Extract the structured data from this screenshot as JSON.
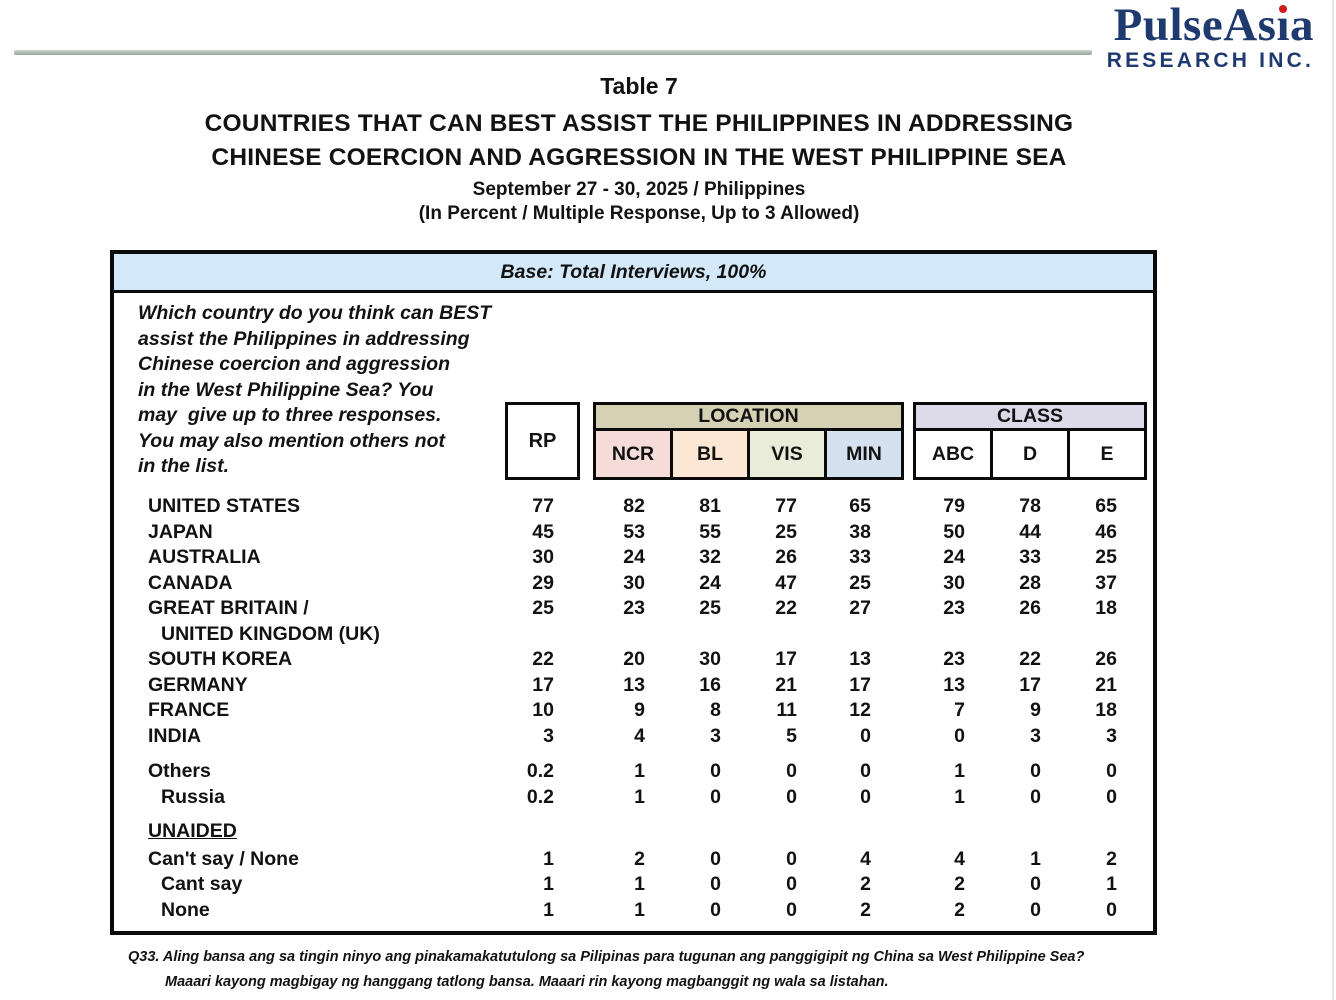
{
  "logo": {
    "brand_pre": "PulseAs",
    "brand_i": "ı",
    "brand_post": "a",
    "research": "RESEARCH INC."
  },
  "titles": {
    "table_no": "Table 7",
    "line1": "COUNTRIES THAT CAN BEST ASSIST THE PHILIPPINES IN ADDRESSING",
    "line2": "CHINESE COERCION AND AGGRESSION IN THE WEST PHILIPPINE SEA",
    "date_line": "September 27 - 30, 2025 / Philippines",
    "note_line": "(In Percent / Multiple Response, Up to 3 Allowed)"
  },
  "table": {
    "base_label": "Base: Total Interviews, 100%",
    "question_lines": [
      "Which country do you think can BEST",
      "assist the Philippines in addressing",
      "Chinese coercion and aggression",
      "in the West Philippine Sea? You",
      "may  give up to three responses.",
      "You may also mention others not",
      "in the list."
    ],
    "rp_header": "RP",
    "location_header": "LOCATION",
    "location_cols": [
      "NCR",
      "BL",
      "VIS",
      "MIN"
    ],
    "class_header": "CLASS",
    "class_cols": [
      "ABC",
      "D",
      "E"
    ],
    "rows": [
      {
        "label": "UNITED STATES",
        "indent": 0,
        "values": [
          "77",
          "82",
          "81",
          "77",
          "65",
          "79",
          "78",
          "65"
        ]
      },
      {
        "label": "JAPAN",
        "indent": 0,
        "values": [
          "45",
          "53",
          "55",
          "25",
          "38",
          "50",
          "44",
          "46"
        ]
      },
      {
        "label": "AUSTRALIA",
        "indent": 0,
        "values": [
          "30",
          "24",
          "32",
          "26",
          "33",
          "24",
          "33",
          "25"
        ]
      },
      {
        "label": "CANADA",
        "indent": 0,
        "values": [
          "29",
          "30",
          "24",
          "47",
          "25",
          "30",
          "28",
          "37"
        ]
      },
      {
        "label": "GREAT BRITAIN /",
        "indent": 0,
        "values": [
          "25",
          "23",
          "25",
          "22",
          "27",
          "23",
          "26",
          "18"
        ]
      },
      {
        "label": "UNITED KINGDOM (UK)",
        "indent": 1,
        "values": null
      },
      {
        "label": "SOUTH KOREA",
        "indent": 0,
        "values": [
          "22",
          "20",
          "30",
          "17",
          "13",
          "23",
          "22",
          "26"
        ]
      },
      {
        "label": "GERMANY",
        "indent": 0,
        "values": [
          "17",
          "13",
          "16",
          "21",
          "17",
          "13",
          "17",
          "21"
        ]
      },
      {
        "label": "FRANCE",
        "indent": 0,
        "values": [
          "10",
          "9",
          "8",
          "11",
          "12",
          "7",
          "9",
          "18"
        ]
      },
      {
        "label": "INDIA",
        "indent": 0,
        "values": [
          "3",
          "4",
          "3",
          "5",
          "0",
          "0",
          "3",
          "3"
        ]
      },
      {
        "label": "Others",
        "indent": 0,
        "gap_before": 10,
        "values": [
          "0.2",
          "1",
          "0",
          "0",
          "0",
          "1",
          "0",
          "0"
        ]
      },
      {
        "label": "Russia",
        "indent": 1,
        "values": [
          "0.2",
          "1",
          "0",
          "0",
          "0",
          "1",
          "0",
          "0"
        ]
      },
      {
        "label": "UNAIDED",
        "indent": 0,
        "gap_before": 9,
        "underline": true,
        "values": null
      },
      {
        "label": "Can't say / None",
        "indent": 0,
        "gap_before": 2,
        "values": [
          "1",
          "2",
          "0",
          "0",
          "4",
          "4",
          "1",
          "2"
        ]
      },
      {
        "label": "Cant say",
        "indent": 1,
        "values": [
          "1",
          "1",
          "0",
          "0",
          "2",
          "2",
          "0",
          "1"
        ]
      },
      {
        "label": "None",
        "indent": 1,
        "values": [
          "1",
          "1",
          "0",
          "0",
          "2",
          "2",
          "0",
          "0"
        ]
      }
    ]
  },
  "footnote": {
    "line1": "Q33. Aling bansa ang sa tingin ninyo ang pinakamakatutulong sa Pilipinas para tugunan ang panggigipit ng China sa West Philippine Sea?",
    "line2": "Maaari kayong magbigay ng hanggang tatlong bansa. Maaari rin kayong magbanggit ng wala sa listahan."
  },
  "colors": {
    "navy": "#1e3a6e",
    "logo_dot_red": "#cf1b1c",
    "base_bar": "#d3e9f9",
    "location_header": "#d5d1b4",
    "ncr": "#f5dcd9",
    "bl": "#fbe7d4",
    "vis": "#e8ecd8",
    "min": "#d5e1ef",
    "class_header": "#dcd9e9"
  }
}
